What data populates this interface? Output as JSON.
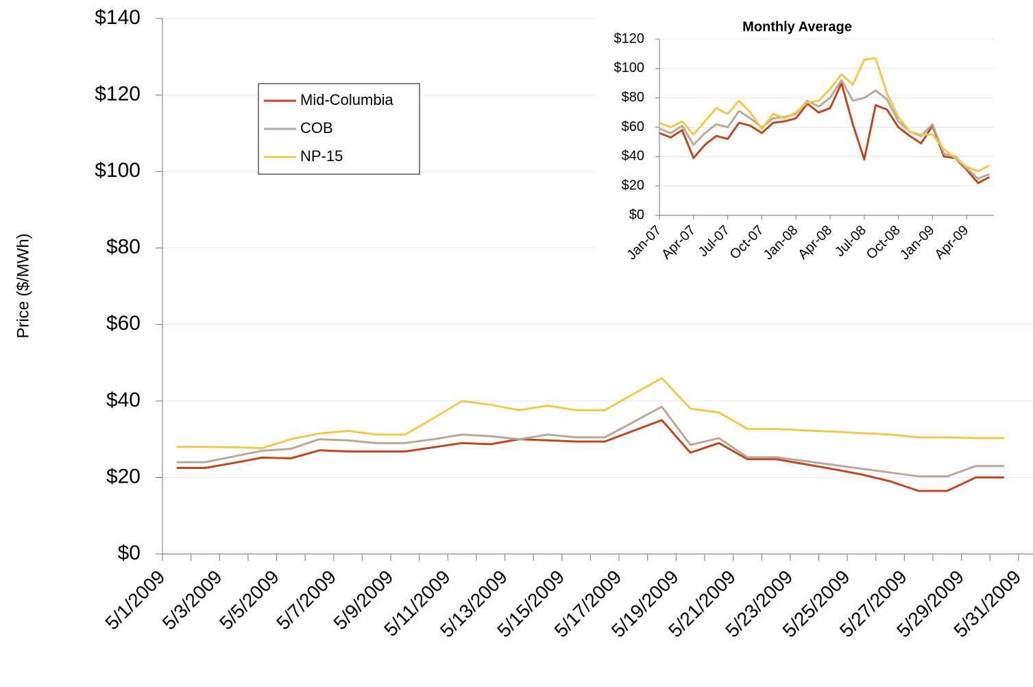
{
  "chart_data": [
    {
      "type": "line",
      "y_label": "Price ($/MWh)",
      "grid": true,
      "legend": "upper-left",
      "x": [
        "5/1/2009",
        null,
        "5/3/2009",
        null,
        "5/5/2009",
        null,
        "5/7/2009",
        null,
        "5/9/2009",
        null,
        "5/11/2009",
        null,
        "5/13/2009",
        null,
        "5/15/2009",
        null,
        "5/17/2009",
        null,
        "5/19/2009",
        null,
        "5/21/2009",
        null,
        "5/23/2009",
        null,
        "5/25/2009",
        null,
        "5/27/2009",
        null,
        "5/29/2009",
        null,
        "5/31/2009"
      ],
      "ylim": [
        0,
        140
      ],
      "yticks": [
        {
          "value": 0,
          "label": "$0"
        },
        {
          "value": 20,
          "label": "$20"
        },
        {
          "value": 40,
          "label": "$40"
        },
        {
          "value": 60,
          "label": "$60"
        },
        {
          "value": 80,
          "label": "$80"
        },
        {
          "value": 100,
          "label": "$100"
        },
        {
          "value": 120,
          "label": "$120"
        },
        {
          "value": 140,
          "label": "$140"
        }
      ],
      "series": [
        {
          "name": "Mid-Columbia",
          "color": "#c0461e",
          "values": [
            22.5,
            22.5,
            23.8,
            25.2,
            25,
            27.1,
            26.8,
            26.8,
            26.8,
            27.9,
            29,
            28.7,
            30,
            29.7,
            29.4,
            29.4,
            32.2,
            35,
            26.5,
            29,
            24.8,
            24.8,
            23.5,
            22.2,
            20.8,
            19,
            16.5,
            16.5,
            20,
            20,
            null
          ]
        },
        {
          "name": "COB",
          "color": "#b8a898",
          "values": [
            24,
            24,
            25.5,
            27,
            27.5,
            30,
            29.7,
            29,
            29,
            30,
            31.2,
            30.8,
            30,
            31.2,
            30.5,
            30.5,
            34.5,
            38.5,
            28.5,
            30.3,
            25.3,
            25.3,
            24.3,
            23.3,
            22.3,
            21.3,
            20.3,
            20.3,
            23,
            23,
            null
          ]
        },
        {
          "name": "NP-15",
          "color": "#f2c84b",
          "values": [
            28,
            28,
            27.9,
            27.7,
            30,
            31.5,
            32.2,
            31.2,
            31.2,
            35.5,
            40,
            39,
            37.6,
            38.8,
            37.6,
            37.6,
            41.8,
            46,
            38,
            37,
            32.7,
            32.7,
            32.3,
            32,
            31.6,
            31.2,
            30.5,
            30.5,
            30.3,
            30.3,
            null
          ]
        }
      ]
    },
    {
      "type": "line",
      "title": "Monthly Average",
      "grid": true,
      "x": [
        "Jan-07",
        null,
        null,
        "Apr-07",
        null,
        null,
        "Jul-07",
        null,
        null,
        "Oct-07",
        null,
        null,
        "Jan-08",
        null,
        null,
        "Apr-08",
        null,
        null,
        "Jul-08",
        null,
        null,
        "Oct-08",
        null,
        null,
        "Jan-09",
        null,
        null,
        "Apr-09",
        null,
        null
      ],
      "ylim": [
        0,
        120
      ],
      "yticks": [
        {
          "value": 0,
          "label": "$0"
        },
        {
          "value": 20,
          "label": "$20"
        },
        {
          "value": 40,
          "label": "$40"
        },
        {
          "value": 60,
          "label": "$60"
        },
        {
          "value": 80,
          "label": "$80"
        },
        {
          "value": 100,
          "label": "$100"
        },
        {
          "value": 120,
          "label": "$120"
        }
      ],
      "series": [
        {
          "name": "Mid-Columbia",
          "color": "#c0461e",
          "values": [
            56,
            53,
            58,
            39,
            48,
            54,
            52,
            63,
            61,
            56,
            63,
            64,
            66,
            76,
            70,
            73,
            90,
            62,
            38,
            75,
            72,
            60,
            54,
            49,
            61,
            40,
            39,
            31,
            22,
            26
          ]
        },
        {
          "name": "COB",
          "color": "#b8a898",
          "values": [
            59,
            56,
            61,
            48,
            56,
            62,
            60,
            71,
            66,
            60,
            66,
            67,
            69,
            78,
            74,
            80,
            92,
            78,
            80,
            85,
            79,
            64,
            57,
            54,
            62,
            42,
            40,
            32,
            25,
            28
          ]
        },
        {
          "name": "NP-15",
          "color": "#f2c84b",
          "values": [
            63,
            60,
            64,
            55,
            64,
            73,
            69,
            78,
            70,
            59,
            69,
            66,
            70,
            77,
            78,
            86,
            96,
            89,
            106,
            107,
            83,
            67,
            57,
            55,
            55,
            45,
            39,
            33,
            30,
            34
          ]
        }
      ]
    }
  ]
}
